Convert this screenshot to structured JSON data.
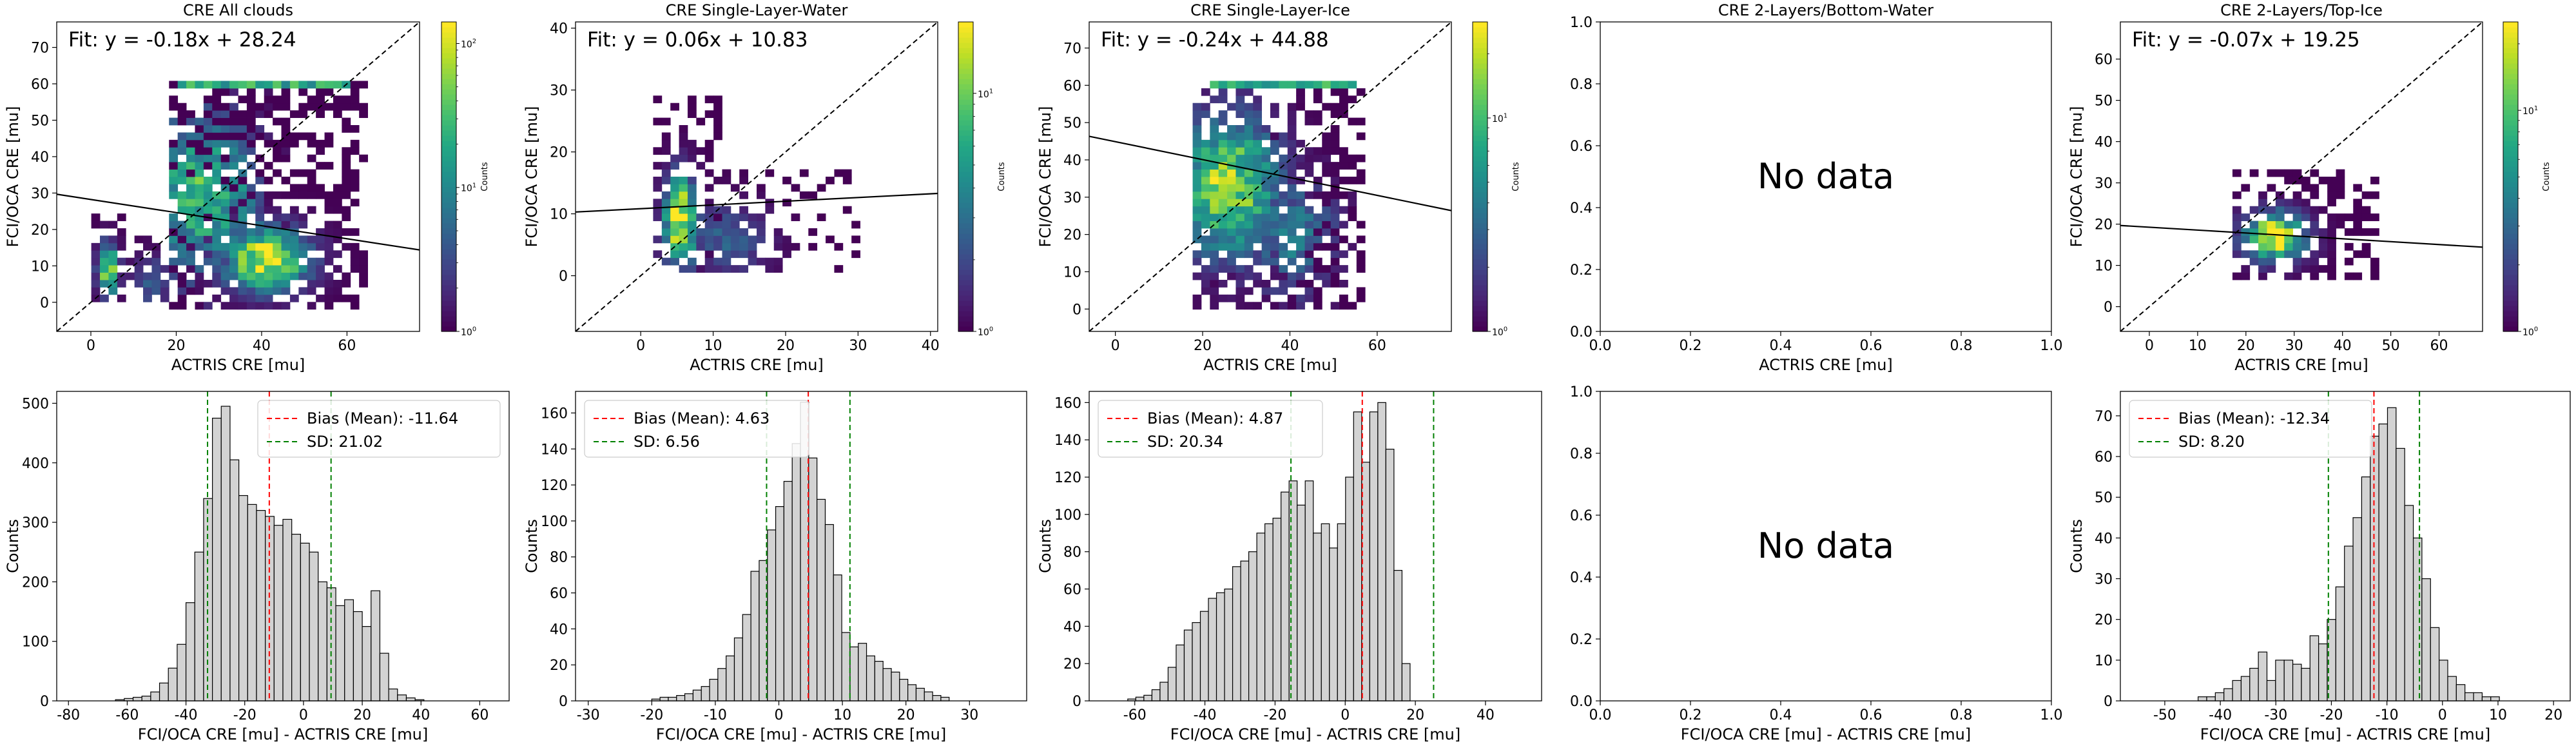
{
  "chart_data": [
    {
      "id": "p00",
      "type": "heatmap",
      "title": "CRE All clouds",
      "xlabel": "ACTRIS CRE [mu]",
      "ylabel": "FCI/OCA CRE [mu]",
      "xlim": [
        -8,
        77
      ],
      "ylim": [
        -8,
        77
      ],
      "xticks": [
        0,
        20,
        40,
        60
      ],
      "yticks": [
        0,
        10,
        20,
        30,
        40,
        50,
        60,
        70
      ],
      "fit_text": "Fit: y = -0.18x + 28.24",
      "fit": {
        "slope": -0.18,
        "intercept": 28.24
      },
      "identity_line": true,
      "colorbar": {
        "label": "Counts",
        "scale": "log",
        "ticks": [
          "10^0",
          "10^1",
          "10^2"
        ],
        "exp_range": [
          0,
          2.15
        ]
      },
      "clusters": [
        {
          "x": [
            1,
            8
          ],
          "y": [
            0,
            25
          ],
          "cx": 4,
          "cy": 9,
          "sx": 1.6,
          "sy": 5,
          "peak": 0.9,
          "fill": 0.85
        },
        {
          "x": [
            18,
            64
          ],
          "y": [
            -1,
            60
          ],
          "cx": 41,
          "cy": 12,
          "sx": 7,
          "sy": 6,
          "peak": 1.0,
          "fill": 0.93
        },
        {
          "x": [
            18,
            60
          ],
          "y": [
            -1,
            60
          ],
          "cx": 26,
          "cy": 30,
          "sx": 10,
          "sy": 16,
          "peak": 0.65,
          "fill": 0
        },
        {
          "x": [
            8,
            18
          ],
          "y": [
            0,
            18
          ],
          "cx": 14,
          "cy": 6,
          "sx": 3,
          "sy": 5,
          "peak": 0.3,
          "fill": 0.3
        }
      ],
      "bands": [
        {
          "y": 59.5,
          "x": [
            20,
            60
          ],
          "peak": 0.75
        }
      ]
    },
    {
      "id": "p01",
      "type": "heatmap",
      "title": "CRE Single-Layer-Water",
      "xlabel": "ACTRIS CRE [mu]",
      "ylabel": "FCI/OCA CRE [mu]",
      "xlim": [
        -9,
        41
      ],
      "ylim": [
        -9,
        41
      ],
      "xticks": [
        0,
        10,
        20,
        30,
        40
      ],
      "yticks": [
        0,
        10,
        20,
        30,
        40
      ],
      "fit_text": "Fit: y = 0.06x + 10.83",
      "fit": {
        "slope": 0.06,
        "intercept": 10.83
      },
      "identity_line": true,
      "colorbar": {
        "label": "Counts",
        "scale": "log",
        "ticks": [
          "10^0",
          "10^1"
        ],
        "exp_range": [
          0,
          1.3
        ]
      },
      "clusters": [
        {
          "x": [
            2,
            11
          ],
          "y": [
            1,
            29
          ],
          "cx": 5.5,
          "cy": 9,
          "sx": 1.6,
          "sy": 5,
          "peak": 1.0,
          "fill": 0.9
        },
        {
          "x": [
            9,
            30
          ],
          "y": [
            1,
            17
          ],
          "cx": 12,
          "cy": 6,
          "sx": 4,
          "sy": 4,
          "peak": 0.3,
          "fill": 0.35
        }
      ],
      "bands": []
    },
    {
      "id": "p02",
      "type": "heatmap",
      "title": "CRE Single-Layer-Ice",
      "xlabel": "ACTRIS CRE [mu]",
      "ylabel": "FCI/OCA CRE [mu]",
      "xlim": [
        -6,
        77
      ],
      "ylim": [
        -6,
        77
      ],
      "xticks": [
        0,
        20,
        40,
        60
      ],
      "yticks": [
        0,
        10,
        20,
        30,
        40,
        50,
        60,
        70
      ],
      "fit_text": "Fit: y = -0.24x + 44.88",
      "fit": {
        "slope": -0.24,
        "intercept": 44.88
      },
      "identity_line": true,
      "colorbar": {
        "label": "Counts",
        "scale": "log",
        "ticks": [
          "10^0",
          "10^1"
        ],
        "exp_range": [
          0,
          1.45
        ]
      },
      "clusters": [
        {
          "x": [
            18,
            58
          ],
          "y": [
            0,
            60
          ],
          "cx": 26,
          "cy": 33,
          "sx": 8,
          "sy": 13,
          "peak": 0.85,
          "fill": 0.8
        },
        {
          "x": [
            20,
            56
          ],
          "y": [
            0,
            60
          ],
          "cx": 40,
          "cy": 20,
          "sx": 8,
          "sy": 12,
          "peak": 0.4,
          "fill": 0
        }
      ],
      "bands": [
        {
          "y": 59.5,
          "x": [
            22,
            56
          ],
          "peak": 0.8
        }
      ]
    },
    {
      "id": "p03",
      "type": "empty",
      "title": "CRE 2-Layers/Bottom-Water",
      "xlabel": "ACTRIS CRE [mu]",
      "ylabel": "",
      "xlim": [
        0,
        1
      ],
      "ylim": [
        0,
        1
      ],
      "xticks": [
        "0.0",
        "0.2",
        "0.4",
        "0.6",
        "0.8",
        "1.0"
      ],
      "yticks": [
        "0.0",
        "0.2",
        "0.4",
        "0.6",
        "0.8",
        "1.0"
      ],
      "message": "No data"
    },
    {
      "id": "p04",
      "type": "heatmap",
      "title": "CRE 2-Layers/Top-Ice",
      "xlabel": "ACTRIS CRE [mu]",
      "ylabel": "FCI/OCA CRE [mu]",
      "xlim": [
        -6,
        69
      ],
      "ylim": [
        -6,
        69
      ],
      "xticks": [
        0,
        10,
        20,
        30,
        40,
        50,
        60
      ],
      "yticks": [
        0,
        10,
        20,
        30,
        40,
        50,
        60
      ],
      "fit_text": "Fit: y = -0.07x + 19.25",
      "fit": {
        "slope": -0.07,
        "intercept": 19.25
      },
      "identity_line": true,
      "colorbar": {
        "label": "Counts",
        "scale": "log",
        "ticks": [
          "10^0",
          "10^1"
        ],
        "exp_range": [
          0,
          1.4
        ]
      },
      "clusters": [
        {
          "x": [
            18,
            48
          ],
          "y": [
            6,
            34
          ],
          "cx": 26,
          "cy": 17,
          "sx": 4.5,
          "sy": 4,
          "peak": 1.0,
          "fill": 0.85
        }
      ],
      "bands": []
    },
    {
      "id": "p10",
      "type": "histogram",
      "xlabel": "FCI/OCA CRE [mu] - ACTRIS CRE [mu]",
      "ylabel": "Counts",
      "xlim": [
        -84,
        70
      ],
      "ylim": [
        0,
        520
      ],
      "xticks": [
        -80,
        -60,
        -40,
        -20,
        0,
        20,
        40,
        60
      ],
      "yticks": [
        0,
        100,
        200,
        300,
        400,
        500
      ],
      "bin_start": -64,
      "bin_width": 3,
      "counts": [
        2,
        4,
        6,
        8,
        15,
        30,
        55,
        95,
        165,
        250,
        340,
        475,
        495,
        405,
        345,
        330,
        320,
        310,
        295,
        305,
        280,
        265,
        250,
        200,
        190,
        160,
        170,
        150,
        125,
        185,
        80,
        20,
        10,
        5,
        2
      ],
      "mean": -11.64,
      "sd": 21.02,
      "legend": [
        "Bias (Mean): -11.64",
        "SD: 21.02"
      ],
      "legend_loc": "upper right"
    },
    {
      "id": "p11",
      "type": "histogram",
      "xlabel": "FCI/OCA CRE [mu] - ACTRIS CRE [mu]",
      "ylabel": "Counts",
      "xlim": [
        -32,
        39
      ],
      "ylim": [
        0,
        172
      ],
      "xticks": [
        -30,
        -20,
        -10,
        0,
        10,
        20,
        30
      ],
      "yticks": [
        0,
        20,
        40,
        60,
        80,
        100,
        120,
        140,
        160
      ],
      "bin_start": -20,
      "bin_width": 1.3,
      "counts": [
        1,
        2,
        2,
        3,
        4,
        6,
        8,
        12,
        18,
        25,
        35,
        48,
        72,
        78,
        95,
        108,
        122,
        143,
        166,
        135,
        112,
        98,
        70,
        38,
        30,
        32,
        25,
        22,
        18,
        16,
        12,
        9,
        7,
        5,
        3,
        2
      ],
      "mean": 4.63,
      "sd": 6.56,
      "legend": [
        "Bias (Mean): 4.63",
        "SD: 6.56"
      ],
      "legend_loc": "upper left"
    },
    {
      "id": "p12",
      "type": "histogram",
      "xlabel": "FCI/OCA CRE [mu] - ACTRIS CRE [mu]",
      "ylabel": "Counts",
      "xlim": [
        -73,
        56
      ],
      "ylim": [
        0,
        166
      ],
      "xticks": [
        -60,
        -40,
        -20,
        0,
        20,
        40
      ],
      "yticks": [
        0,
        20,
        40,
        60,
        80,
        100,
        120,
        140,
        160
      ],
      "bin_start": -62,
      "bin_width": 2.3,
      "counts": [
        1,
        2,
        3,
        6,
        10,
        18,
        30,
        38,
        42,
        48,
        55,
        58,
        60,
        72,
        75,
        80,
        90,
        95,
        98,
        112,
        118,
        105,
        118,
        90,
        95,
        82,
        95,
        120,
        155,
        128,
        155,
        160,
        135,
        70,
        20
      ],
      "mean": 4.87,
      "sd": 20.34,
      "legend": [
        "Bias (Mean): 4.87",
        "SD: 20.34"
      ],
      "legend_loc": "upper left"
    },
    {
      "id": "p13",
      "type": "empty",
      "xlabel": "FCI/OCA CRE [mu] - ACTRIS CRE [mu]",
      "ylabel": "",
      "xlim": [
        0,
        1
      ],
      "ylim": [
        0,
        1
      ],
      "xticks": [
        "0.0",
        "0.2",
        "0.4",
        "0.6",
        "0.8",
        "1.0"
      ],
      "yticks": [
        "0.0",
        "0.2",
        "0.4",
        "0.6",
        "0.8",
        "1.0"
      ],
      "message": "No data"
    },
    {
      "id": "p14",
      "type": "histogram",
      "xlabel": "FCI/OCA CRE [mu] - ACTRIS CRE [mu]",
      "ylabel": "Counts",
      "xlim": [
        -58,
        23
      ],
      "ylim": [
        0,
        76
      ],
      "xticks": [
        -50,
        -40,
        -30,
        -20,
        -10,
        0,
        10,
        20
      ],
      "yticks": [
        0,
        10,
        20,
        30,
        40,
        50,
        60,
        70
      ],
      "bin_start": -44,
      "bin_width": 1.55,
      "counts": [
        1,
        1,
        2,
        3,
        5,
        6,
        8,
        12,
        5,
        10,
        10,
        9,
        8,
        16,
        14,
        20,
        28,
        38,
        45,
        55,
        65,
        68,
        72,
        62,
        48,
        40,
        30,
        18,
        10,
        6,
        4,
        2,
        2,
        1,
        1
      ],
      "mean": -12.34,
      "sd": 8.2,
      "legend": [
        "Bias (Mean): -12.34",
        "SD: 8.20"
      ],
      "legend_loc": "upper left"
    }
  ]
}
